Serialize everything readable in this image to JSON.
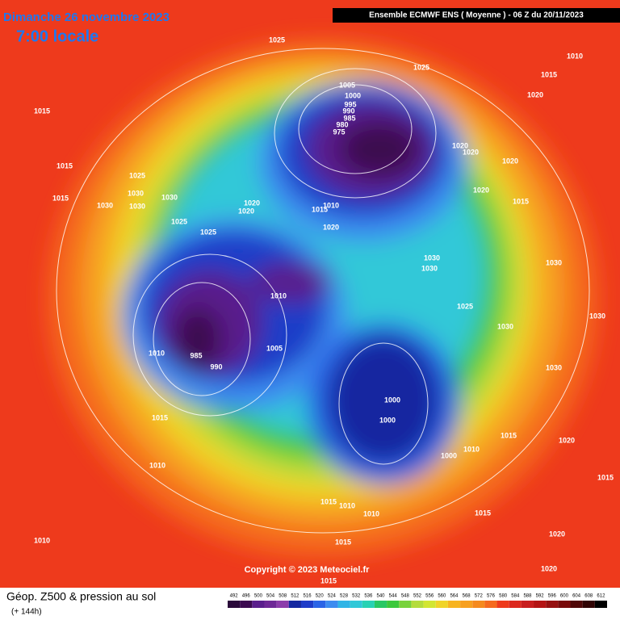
{
  "header": {
    "date": "Dimanche 26 novembre 2023",
    "time": "7:00 locale",
    "model": "Ensemble ECMWF ENS  ( Moyenne )  - 06 Z du 20/11/2023"
  },
  "footer": {
    "title": "Géop. Z500 & pression au sol",
    "subtitle": "(+ 144h)"
  },
  "copyright": "Copyright © 2023 Meteociel.fr",
  "colorbar": {
    "labels": [
      492,
      496,
      500,
      504,
      508,
      512,
      516,
      520,
      524,
      528,
      532,
      536,
      540,
      544,
      548,
      552,
      556,
      560,
      564,
      568,
      572,
      576,
      580,
      584,
      588,
      592,
      596,
      600,
      604,
      608,
      612
    ]
  },
  "isobar_labels": [
    "1025",
    "1025",
    "1010",
    "1015",
    "1020",
    "1005",
    "1000",
    "995",
    "990",
    "985",
    "980",
    "975",
    "1015",
    "1015",
    "1025",
    "1030",
    "1030",
    "1015",
    "1030",
    "1030",
    "1025",
    "1025",
    "1020",
    "1020",
    "1015",
    "1010",
    "1020",
    "1020",
    "1020",
    "1020",
    "1020",
    "1015",
    "1030",
    "1030",
    "1025",
    "1030",
    "1010",
    "985",
    "990",
    "1010",
    "1005",
    "1015",
    "1000",
    "1000",
    "1000",
    "1010",
    "1010",
    "1015",
    "1010",
    "1010",
    "1015",
    "1010",
    "1015",
    "1015",
    "1020",
    "1020",
    "1015",
    "1020",
    "1015",
    "1030",
    "1030",
    "1030"
  ]
}
